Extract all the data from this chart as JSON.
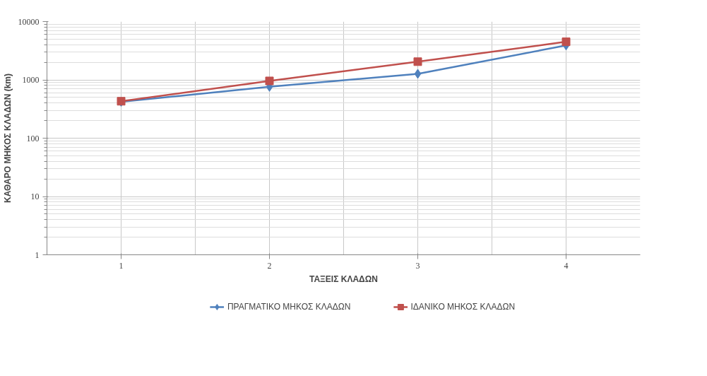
{
  "chart_data": {
    "type": "line",
    "xlabel": "ΤΑΞΕΙΣ ΚΛΑΔΩΝ",
    "ylabel": "ΚΑΘΑΡΟ ΜΗΚΟΣ ΚΛΑΔΩΝ (km)",
    "categories": [
      "1",
      "2",
      "3",
      "4"
    ],
    "series": [
      {
        "name": "ΠΡΑΓΜΑΤΙΚΟ ΜΗΚΟΣ ΚΛΑΔΩΝ",
        "color": "#4f81bd",
        "marker": "diamond",
        "values": [
          420,
          760,
          1270,
          3900
        ]
      },
      {
        "name": "ΙΔΑΝΙΚΟ ΜΗΚΟΣ ΚΛΑΔΩΝ",
        "color": "#c0504d",
        "marker": "square",
        "values": [
          430,
          960,
          2050,
          4500
        ]
      }
    ],
    "log": "y",
    "ylim": [
      1,
      10000
    ],
    "yticks": [
      1,
      10,
      100,
      1000,
      10000
    ],
    "grid": true,
    "legend": "bottom",
    "line_style": "solid"
  }
}
